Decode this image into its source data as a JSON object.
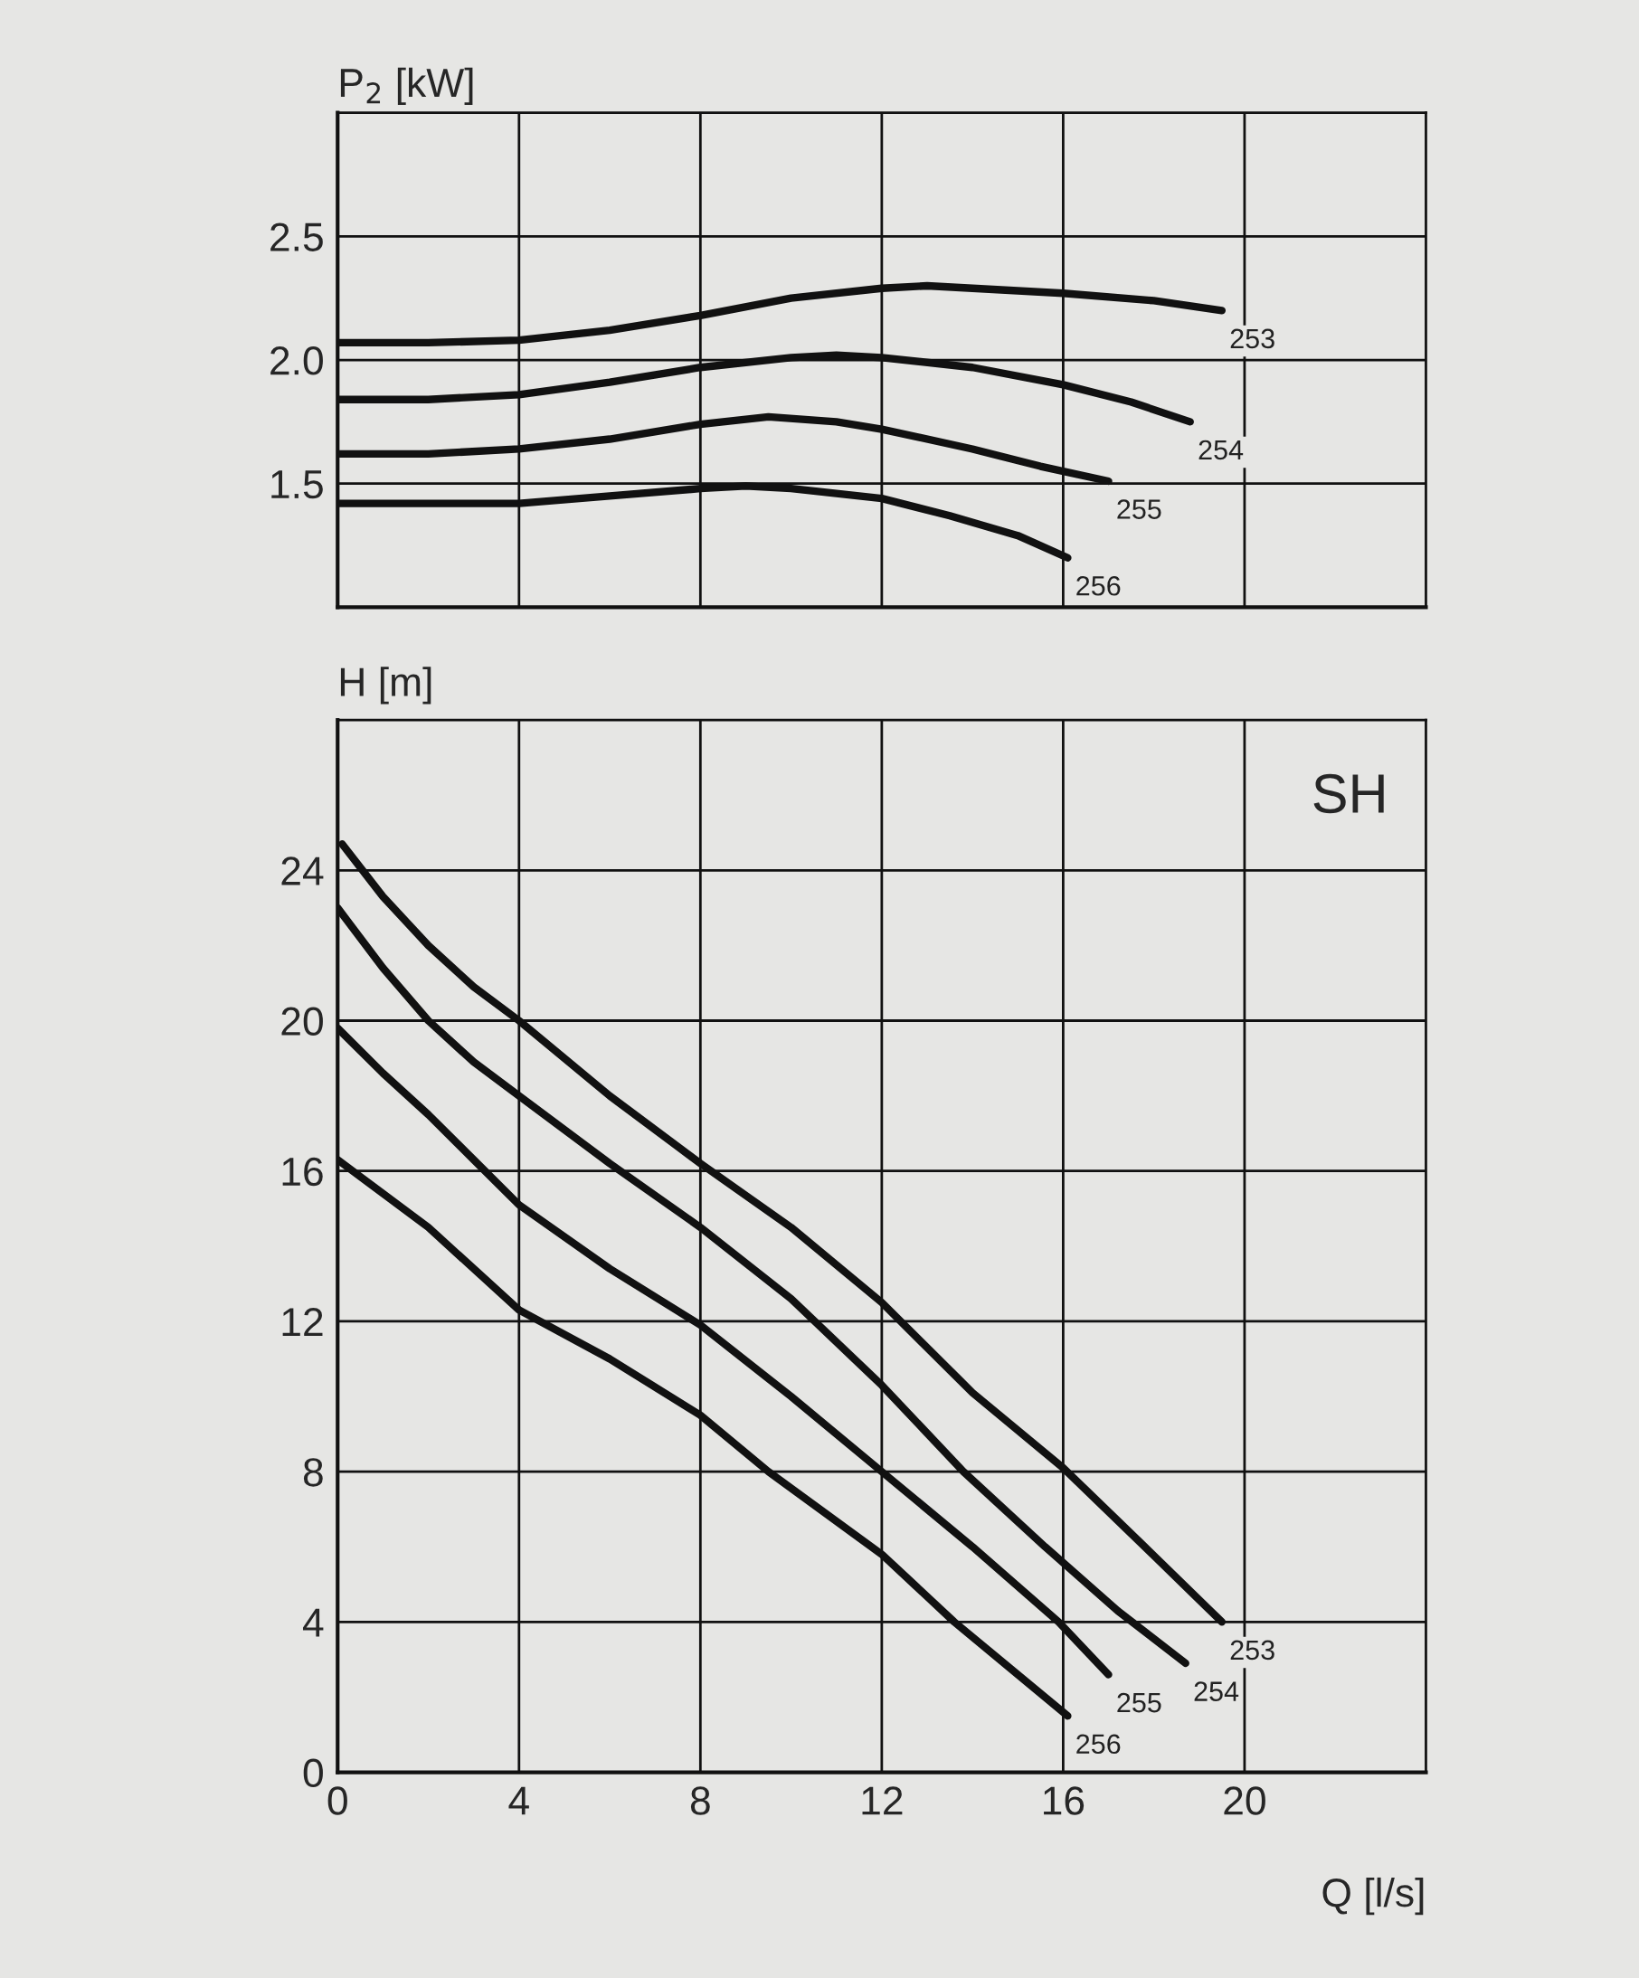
{
  "chart_data": [
    {
      "type": "line",
      "ylabel": "P$_{2}$ [kW]",
      "xlim": [
        0,
        24
      ],
      "xticks": [
        0,
        4,
        8,
        12,
        16,
        20
      ],
      "ylim": [
        1.0,
        3.0
      ],
      "yticks": [
        {
          "value": 1.5,
          "label": "1.5"
        },
        {
          "value": 2.0,
          "label": "2.0"
        },
        {
          "value": 2.5,
          "label": "2.5"
        }
      ],
      "grid": true,
      "tick_labels": "y",
      "legend": false,
      "series": [
        {
          "name": "253",
          "color": "#111111",
          "x": [
            0,
            2,
            4,
            6,
            8,
            10,
            12,
            13,
            14,
            16,
            18,
            19.5
          ],
          "values": [
            2.07,
            2.07,
            2.08,
            2.12,
            2.18,
            2.25,
            2.29,
            2.3,
            2.29,
            2.27,
            2.24,
            2.2
          ]
        },
        {
          "name": "254",
          "color": "#111111",
          "x": [
            0,
            2,
            4,
            6,
            8,
            10,
            11,
            12,
            14,
            16,
            17.5,
            18.8
          ],
          "values": [
            1.84,
            1.84,
            1.86,
            1.91,
            1.97,
            2.01,
            2.02,
            2.01,
            1.97,
            1.9,
            1.83,
            1.75
          ]
        },
        {
          "name": "255",
          "color": "#111111",
          "x": [
            0,
            2,
            4,
            6,
            8,
            9.5,
            11,
            12,
            14,
            15.5,
            17
          ],
          "values": [
            1.62,
            1.62,
            1.64,
            1.68,
            1.74,
            1.77,
            1.75,
            1.72,
            1.64,
            1.57,
            1.51
          ]
        },
        {
          "name": "256",
          "color": "#111111",
          "x": [
            0,
            2,
            4,
            6,
            8,
            9,
            10,
            12,
            13.5,
            15,
            16.1
          ],
          "values": [
            1.42,
            1.42,
            1.42,
            1.45,
            1.48,
            1.49,
            1.48,
            1.44,
            1.37,
            1.29,
            1.2
          ]
        }
      ]
    },
    {
      "type": "line",
      "ylabel": "H [m]",
      "xlabel": "Q [l/s]",
      "xlim": [
        0,
        24
      ],
      "xticks": [
        0,
        4,
        8,
        12,
        16,
        20
      ],
      "ylim": [
        0,
        28
      ],
      "yticks": [
        0,
        4,
        8,
        12,
        16,
        20,
        24
      ],
      "grid": true,
      "legend": false,
      "annotations": [
        "SH"
      ],
      "series": [
        {
          "name": "253",
          "color": "#111111",
          "x": [
            0.1,
            1,
            2,
            3,
            4,
            6,
            8,
            10,
            12,
            14,
            16,
            17.8,
            19.5
          ],
          "values": [
            24.7,
            23.3,
            22,
            20.9,
            20,
            18,
            16.2,
            14.5,
            12.5,
            10.1,
            8.1,
            6,
            4
          ]
        },
        {
          "name": "254",
          "color": "#111111",
          "x": [
            0,
            1,
            2,
            3,
            4,
            6,
            8,
            10,
            12,
            13.8,
            15.6,
            17.2,
            18.7
          ],
          "values": [
            23,
            21.4,
            20,
            18.9,
            18,
            16.2,
            14.5,
            12.6,
            10.3,
            8,
            6,
            4.3,
            2.9
          ]
        },
        {
          "name": "255",
          "color": "#111111",
          "x": [
            0,
            1,
            2,
            3,
            4,
            6,
            8,
            10,
            12,
            14,
            15.9,
            17
          ],
          "values": [
            19.8,
            18.6,
            17.5,
            16.3,
            15.1,
            13.4,
            11.9,
            10,
            8,
            6,
            4,
            2.6
          ]
        },
        {
          "name": "256",
          "color": "#111111",
          "x": [
            0,
            2,
            4,
            6,
            8,
            9.5,
            12,
            13.6,
            16.1
          ],
          "values": [
            16.3,
            14.5,
            12.3,
            11,
            9.5,
            8,
            5.8,
            4,
            1.5
          ]
        }
      ]
    }
  ]
}
